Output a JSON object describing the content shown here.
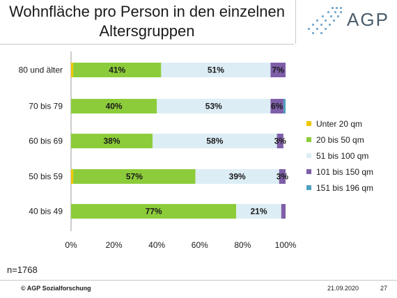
{
  "slide": {
    "title_line1": "Wohnfläche pro Person in den einzelnen",
    "title_line2": "Altersgruppen",
    "logo_text": "AGP",
    "sample_size": "n=1768",
    "footer_org": "© AGP Sozialforschung",
    "footer_date": "21.09.2020",
    "page_number": "27"
  },
  "chart_data": {
    "type": "bar",
    "orientation": "horizontal",
    "stacked": true,
    "categories": [
      "80 und älter",
      "70 bis 79",
      "60 bis 69",
      "50 bis 59",
      "40 bis 49"
    ],
    "series": [
      {
        "name": "Unter 20 qm",
        "color": "#f0c800",
        "values": [
          1,
          0,
          0,
          1,
          0
        ],
        "labels": [
          "",
          "",
          "",
          "",
          ""
        ]
      },
      {
        "name": "20 bis 50 qm",
        "color": "#8ccc3a",
        "values": [
          41,
          40,
          38,
          57,
          77
        ],
        "labels": [
          "41%",
          "40%",
          "38%",
          "57%",
          "77%"
        ]
      },
      {
        "name": "51 bis 100 qm",
        "color": "#dcedf5",
        "values": [
          51,
          53,
          58,
          39,
          21
        ],
        "labels": [
          "51%",
          "53%",
          "58%",
          "39%",
          "21%"
        ]
      },
      {
        "name": "101 bis 150 qm",
        "color": "#7e5ea8",
        "values": [
          7,
          6,
          3,
          3,
          2
        ],
        "labels": [
          "7%",
          "6%",
          "3%",
          "3%",
          ""
        ]
      },
      {
        "name": "151 bis 196 qm",
        "color": "#4f9fc0",
        "values": [
          1,
          1,
          0,
          0,
          0
        ],
        "labels": [
          "",
          "",
          "",
          "",
          ""
        ]
      }
    ],
    "xaxis": {
      "ticks": [
        "0%",
        "20%",
        "40%",
        "60%",
        "80%",
        "100%"
      ],
      "range": [
        0,
        100
      ]
    },
    "grid": false,
    "legend_position": "right"
  }
}
